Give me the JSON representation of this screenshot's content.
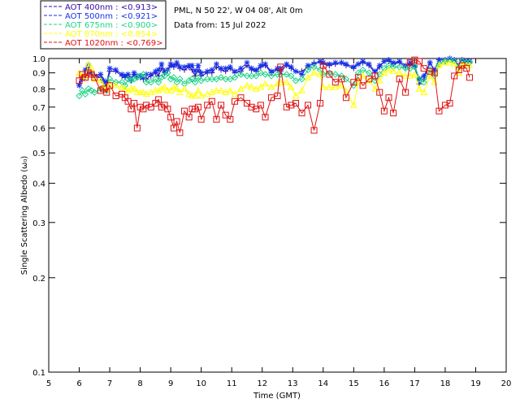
{
  "info": {
    "station": "PML, N 50 22', W 04 08', Alt 0m",
    "date": "Data from: 15 Jul 2022"
  },
  "chart_data": {
    "type": "line",
    "title": "PML, N 50 22', W 04 08', Alt 0m",
    "xlabel": "Time (GMT)",
    "ylabel": "Single Scattering Albedo (ω₀)",
    "xlim": [
      5,
      20
    ],
    "ylim": [
      0.1,
      1.0
    ],
    "yscale": "log",
    "xticks": [
      "5",
      "6",
      "7",
      "8",
      "9",
      "10",
      "11",
      "12",
      "13",
      "14",
      "15",
      "16",
      "17",
      "18",
      "19",
      "20"
    ],
    "yticks": [
      {
        "v": 0.1,
        "label": "0.1"
      },
      {
        "v": 0.2,
        "label": "0.2"
      },
      {
        "v": 0.3,
        "label": "0.3"
      },
      {
        "v": 0.4,
        "label": "0.4"
      },
      {
        "v": 0.5,
        "label": "0.5"
      },
      {
        "v": 0.6,
        "label": "0.6"
      },
      {
        "v": 0.7,
        "label": "0.7"
      },
      {
        "v": 0.8,
        "label": "0.8"
      },
      {
        "v": 0.9,
        "label": "0.9"
      },
      {
        "v": 1.0,
        "label": "1.0"
      }
    ],
    "x": [
      6.0,
      6.1,
      6.2,
      6.3,
      6.4,
      6.5,
      6.7,
      6.8,
      6.9,
      7.0,
      7.2,
      7.4,
      7.5,
      7.6,
      7.7,
      7.8,
      7.9,
      8.0,
      8.1,
      8.2,
      8.35,
      8.5,
      8.6,
      8.7,
      8.8,
      8.9,
      9.0,
      9.1,
      9.2,
      9.3,
      9.45,
      9.6,
      9.7,
      9.8,
      9.9,
      10.0,
      10.2,
      10.35,
      10.5,
      10.65,
      10.8,
      10.95,
      11.1,
      11.3,
      11.5,
      11.65,
      11.8,
      11.95,
      12.1,
      12.3,
      12.5,
      12.6,
      12.8,
      12.95,
      13.1,
      13.3,
      13.5,
      13.7,
      13.9,
      14.0,
      14.2,
      14.4,
      14.6,
      14.75,
      15.0,
      15.15,
      15.3,
      15.5,
      15.7,
      15.85,
      16.0,
      16.15,
      16.3,
      16.5,
      16.7,
      16.85,
      17.0,
      17.15,
      17.3,
      17.5,
      17.65,
      17.8,
      18.0,
      18.15,
      18.3,
      18.45,
      18.55,
      18.7,
      18.8
    ],
    "series": [
      {
        "name": "AOT  400nm",
        "label": "AOT  400nm : <0.913>",
        "mean_text": "<0.913>",
        "color": "#2f0fa0",
        "marker": "plus",
        "values": [
          0.83,
          0.88,
          0.87,
          0.92,
          0.9,
          0.88,
          0.87,
          0.84,
          0.82,
          0.91,
          0.91,
          0.88,
          0.87,
          0.88,
          0.85,
          0.89,
          0.87,
          0.87,
          0.86,
          0.86,
          0.88,
          0.9,
          0.88,
          0.93,
          0.91,
          0.92,
          0.95,
          0.94,
          0.96,
          0.93,
          0.92,
          0.94,
          0.92,
          0.88,
          0.92,
          0.88,
          0.9,
          0.9,
          0.94,
          0.92,
          0.91,
          0.93,
          0.9,
          0.91,
          0.95,
          0.92,
          0.91,
          0.94,
          0.95,
          0.9,
          0.92,
          0.91,
          0.95,
          0.93,
          0.91,
          0.91,
          0.94,
          0.97,
          0.97,
          0.96,
          0.95,
          0.96,
          0.97,
          0.95,
          0.93,
          0.96,
          0.97,
          0.95,
          0.9,
          0.94,
          0.98,
          0.98,
          0.96,
          0.97,
          0.94,
          0.96,
          0.94,
          0.83,
          0.86,
          0.97,
          0.91,
          0.99,
          0.99,
          1.0,
          0.99,
          0.94,
          0.99,
          0.97,
          0.98
        ]
      },
      {
        "name": "AOT  500nm",
        "label": "AOT  500nm : <0.921>",
        "mean_text": "<0.921>",
        "color": "#1432ee",
        "marker": "asterisk",
        "values": [
          0.82,
          0.86,
          0.92,
          0.95,
          0.9,
          0.88,
          0.89,
          0.85,
          0.84,
          0.93,
          0.92,
          0.89,
          0.88,
          0.89,
          0.86,
          0.9,
          0.88,
          0.88,
          0.87,
          0.89,
          0.89,
          0.91,
          0.92,
          0.96,
          0.9,
          0.92,
          0.96,
          0.95,
          0.97,
          0.94,
          0.94,
          0.95,
          0.95,
          0.91,
          0.95,
          0.9,
          0.91,
          0.92,
          0.96,
          0.93,
          0.93,
          0.94,
          0.91,
          0.93,
          0.97,
          0.93,
          0.92,
          0.95,
          0.96,
          0.91,
          0.93,
          0.93,
          0.96,
          0.94,
          0.91,
          0.89,
          0.95,
          0.96,
          0.98,
          0.97,
          0.96,
          0.97,
          0.97,
          0.96,
          0.94,
          0.96,
          0.98,
          0.96,
          0.91,
          0.95,
          0.98,
          0.99,
          0.97,
          0.98,
          0.95,
          0.97,
          0.95,
          0.86,
          0.88,
          0.97,
          0.92,
          0.99,
          0.99,
          1.0,
          0.99,
          0.95,
          0.99,
          0.98,
          0.98
        ]
      },
      {
        "name": "AOT  675nm",
        "label": "AOT  675nm : <0.900>",
        "mean_text": "<0.900>",
        "color": "#1fd487",
        "marker": "diamond",
        "values": [
          0.76,
          0.79,
          0.77,
          0.8,
          0.79,
          0.78,
          0.8,
          0.8,
          0.79,
          0.86,
          0.84,
          0.84,
          0.82,
          0.86,
          0.85,
          0.86,
          0.87,
          0.88,
          0.89,
          0.84,
          0.84,
          0.86,
          0.84,
          0.87,
          0.88,
          0.9,
          0.86,
          0.87,
          0.84,
          0.86,
          0.83,
          0.85,
          0.86,
          0.84,
          0.87,
          0.85,
          0.86,
          0.86,
          0.86,
          0.87,
          0.86,
          0.86,
          0.87,
          0.89,
          0.88,
          0.88,
          0.88,
          0.9,
          0.89,
          0.88,
          0.89,
          0.89,
          0.89,
          0.88,
          0.85,
          0.86,
          0.92,
          0.94,
          0.92,
          0.89,
          0.9,
          0.89,
          0.88,
          0.86,
          0.82,
          0.9,
          0.92,
          0.9,
          0.85,
          0.89,
          0.93,
          0.95,
          0.94,
          0.94,
          0.93,
          0.93,
          0.94,
          0.86,
          0.84,
          0.92,
          0.88,
          0.96,
          0.98,
          0.99,
          0.98,
          0.94,
          0.98,
          0.97,
          0.97
        ]
      },
      {
        "name": "AOT  870nm",
        "label": "AOT  870nm : <0.854>",
        "mean_text": "<0.854>",
        "color": "#ffff00",
        "marker": "triangle",
        "values": [
          0.9,
          0.88,
          0.87,
          0.96,
          0.93,
          0.86,
          0.85,
          0.81,
          0.8,
          0.83,
          0.82,
          0.81,
          0.8,
          0.79,
          0.8,
          0.8,
          0.78,
          0.78,
          0.78,
          0.77,
          0.78,
          0.79,
          0.79,
          0.8,
          0.81,
          0.79,
          0.79,
          0.81,
          0.8,
          0.78,
          0.8,
          0.77,
          0.76,
          0.76,
          0.79,
          0.76,
          0.77,
          0.78,
          0.79,
          0.79,
          0.78,
          0.79,
          0.77,
          0.8,
          0.82,
          0.81,
          0.8,
          0.81,
          0.83,
          0.81,
          0.83,
          0.84,
          0.84,
          0.81,
          0.76,
          0.79,
          0.87,
          0.9,
          0.89,
          0.81,
          0.81,
          0.81,
          0.82,
          0.79,
          0.71,
          0.84,
          0.88,
          0.85,
          0.8,
          0.85,
          0.9,
          0.92,
          0.91,
          0.9,
          0.88,
          0.88,
          0.89,
          0.8,
          0.78,
          0.88,
          0.84,
          0.95,
          0.97,
          0.97,
          0.96,
          0.9,
          0.96,
          0.95,
          0.95
        ]
      },
      {
        "name": "AOT 1020nm",
        "label": "AOT 1020nm : <0.769>",
        "mean_text": "<0.769>",
        "color": "#e01010",
        "marker": "square",
        "values": [
          0.85,
          0.89,
          0.87,
          0.9,
          0.89,
          0.87,
          0.79,
          0.8,
          0.78,
          0.82,
          0.76,
          0.77,
          0.75,
          0.73,
          0.69,
          0.72,
          0.6,
          0.7,
          0.69,
          0.71,
          0.7,
          0.72,
          0.74,
          0.7,
          0.71,
          0.69,
          0.65,
          0.6,
          0.63,
          0.58,
          0.68,
          0.65,
          0.69,
          0.69,
          0.7,
          0.64,
          0.71,
          0.73,
          0.64,
          0.71,
          0.66,
          0.64,
          0.73,
          0.75,
          0.72,
          0.7,
          0.69,
          0.71,
          0.65,
          0.75,
          0.76,
          0.94,
          0.7,
          0.71,
          0.72,
          0.67,
          0.71,
          0.59,
          0.72,
          0.95,
          0.89,
          0.84,
          0.86,
          0.75,
          0.84,
          0.87,
          0.82,
          0.86,
          0.88,
          0.78,
          0.68,
          0.75,
          0.67,
          0.86,
          0.78,
          0.97,
          0.99,
          0.98,
          0.93,
          0.91,
          0.9,
          0.68,
          0.71,
          0.72,
          0.88,
          0.92,
          0.95,
          0.93,
          0.87
        ]
      }
    ]
  }
}
